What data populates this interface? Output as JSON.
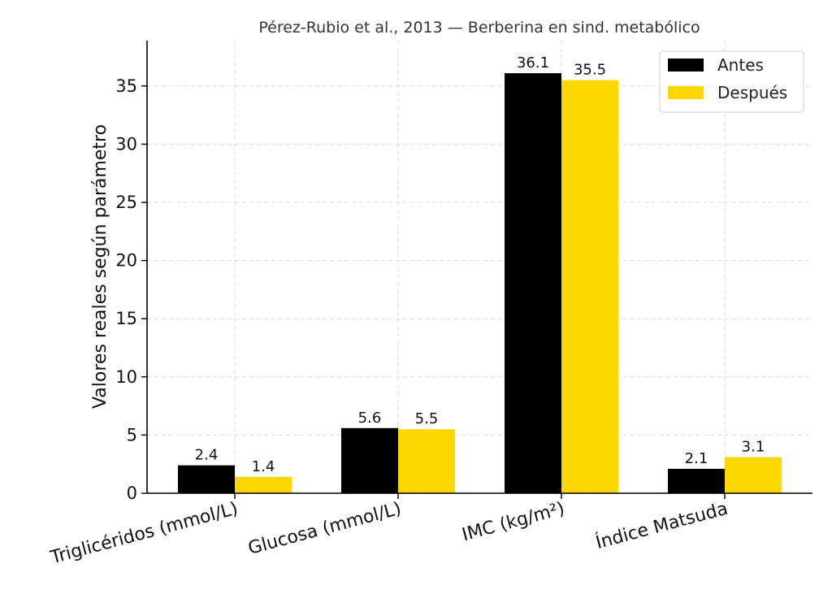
{
  "chart_data": {
    "type": "bar",
    "title": "Pérez-Rubio et al., 2013 — Berberina en sind. metabólico",
    "xlabel": "",
    "ylabel": "Valores reales según parámetro",
    "categories": [
      "Triglicéridos (mmol/L)",
      "Glucosa (mmol/L)",
      "IMC (kg/m²)",
      "Índice Matsuda"
    ],
    "series": [
      {
        "name": "Antes",
        "color": "#000000",
        "values": [
          2.4,
          5.6,
          36.1,
          2.1
        ],
        "labels": [
          "2.4",
          "5.6",
          "36.1",
          "2.1"
        ]
      },
      {
        "name": "Después",
        "color": "#FFD700",
        "values": [
          1.4,
          5.5,
          35.5,
          3.1
        ],
        "labels": [
          "1.4",
          "5.5",
          "35.5",
          "3.1"
        ]
      }
    ],
    "ylim": [
      0,
      38.9
    ],
    "yticks": [
      0,
      5,
      10,
      15,
      20,
      25,
      30,
      35
    ],
    "ytick_labels": [
      "0",
      "5",
      "10",
      "15",
      "20",
      "25",
      "30",
      "35"
    ],
    "grid": true,
    "legend_position": "top-right"
  }
}
